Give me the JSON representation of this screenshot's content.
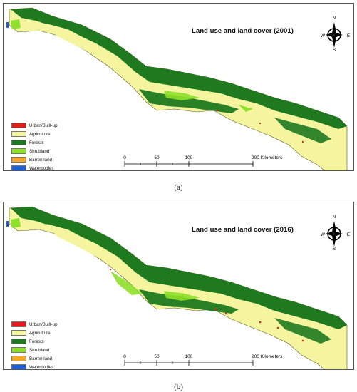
{
  "panels": [
    {
      "id": "a",
      "title": "Land use and land cover (2001)",
      "caption": "(a)"
    },
    {
      "id": "b",
      "title": "Land use and land cover (2016)",
      "caption": "(b)"
    }
  ],
  "compass": {
    "n": "N",
    "s": "S",
    "e": "E",
    "w": "W"
  },
  "legend": [
    {
      "label": "Urban/Built-up",
      "color": "#e41a1c"
    },
    {
      "label": "Agriculture",
      "color": "#f5f5a0"
    },
    {
      "label": "Forests",
      "color": "#1f7a1f"
    },
    {
      "label": "Shrubland",
      "color": "#8ee02a"
    },
    {
      "label": "Barren land",
      "color": "#f5a623"
    },
    {
      "label": "Waterbodies",
      "color": "#1f5fd6"
    }
  ],
  "scalebar": {
    "ticks": [
      "0",
      "50",
      "100",
      "200 Kilometers"
    ]
  }
}
